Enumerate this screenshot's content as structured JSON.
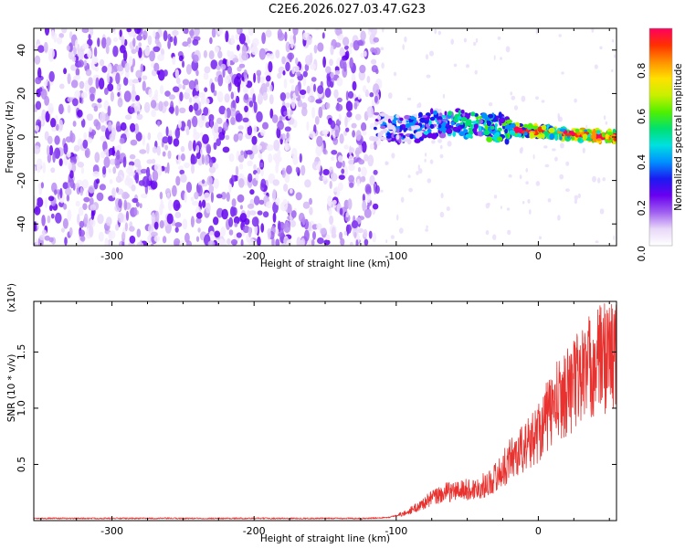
{
  "title": "C2E6.2026.027.03.47.G23",
  "chart_data": [
    {
      "type": "heatmap",
      "name": "spectrogram",
      "xlabel": "Height of straight line (km)",
      "ylabel": "Frequency (Hz)",
      "xlim": [
        -355,
        55
      ],
      "ylim": [
        -50,
        50
      ],
      "xticks": [
        -300,
        -200,
        -100,
        0
      ],
      "xtick_labels": [
        "-300",
        "-200",
        "-100",
        "0"
      ],
      "yticks": [
        -40,
        -20,
        0,
        20,
        40
      ],
      "ytick_labels": [
        "-40",
        "-20",
        "0",
        "20",
        "40"
      ],
      "noise_region_x": [
        -355,
        -112
      ],
      "signal_band": [
        {
          "x": -115,
          "f": 5
        },
        {
          "x": -90,
          "f": 3
        },
        {
          "x": -75,
          "f": 6
        },
        {
          "x": -60,
          "f": 7
        },
        {
          "x": -40,
          "f": 5
        },
        {
          "x": -25,
          "f": 4
        },
        {
          "x": -10,
          "f": 3
        },
        {
          "x": 10,
          "f": 2
        },
        {
          "x": 30,
          "f": 1
        },
        {
          "x": 55,
          "f": 0
        }
      ],
      "colorbar": {
        "label": "Normalized spectral amplitude",
        "range": [
          0.0,
          0.95
        ],
        "ticks": [
          0.0,
          0.2,
          0.4,
          0.6,
          0.8
        ],
        "tick_labels": [
          "0.0",
          "0.2",
          "0.4",
          "0.6",
          "0.8"
        ],
        "colors": [
          "#ffffff",
          "#e8d8f8",
          "#9f5ff0",
          "#6a00f0",
          "#1a1af0",
          "#0090ff",
          "#00e0e0",
          "#00e070",
          "#50f000",
          "#c8f000",
          "#ffe000",
          "#ff9000",
          "#ff3000",
          "#ff0060"
        ]
      }
    },
    {
      "type": "line",
      "name": "snr",
      "xlabel": "Height of straight line (km)",
      "ylabel": "SNR (10 * v/v)",
      "y_multiplier": "(x10⁴)",
      "xlim": [
        -355,
        55
      ],
      "ylim": [
        0,
        1.95
      ],
      "xticks": [
        -300,
        -200,
        -100,
        0
      ],
      "xtick_labels": [
        "-300",
        "-200",
        "-100",
        "0"
      ],
      "yticks": [
        0.5,
        1.0,
        1.5
      ],
      "ytick_labels": [
        "0.5",
        "1.0",
        "1.5"
      ],
      "color": "#e8322f",
      "series": [
        {
          "name": "SNR",
          "x": [
            -355,
            -200,
            -120,
            -105,
            -95,
            -85,
            -75,
            -65,
            -55,
            -45,
            -35,
            -25,
            -20,
            -15,
            -10,
            -5,
            0,
            5,
            10,
            15,
            20,
            25,
            30,
            35,
            40,
            45,
            50,
            55
          ],
          "y": [
            0.02,
            0.02,
            0.02,
            0.03,
            0.06,
            0.12,
            0.2,
            0.25,
            0.27,
            0.28,
            0.33,
            0.45,
            0.55,
            0.6,
            0.65,
            0.7,
            0.8,
            0.9,
            1.0,
            1.08,
            1.15,
            1.22,
            1.3,
            1.35,
            1.4,
            1.45,
            1.48,
            1.5
          ]
        }
      ]
    }
  ]
}
